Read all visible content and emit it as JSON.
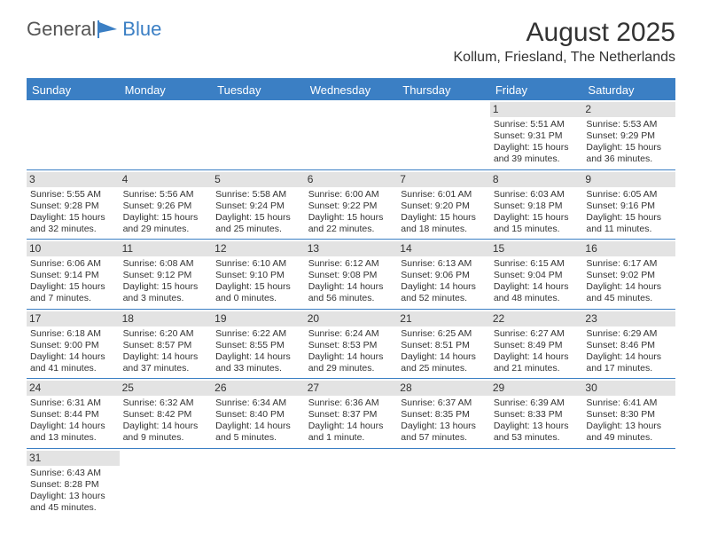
{
  "brand": {
    "part1": "General",
    "part2": "Blue"
  },
  "title": "August 2025",
  "location": "Kollum, Friesland, The Netherlands",
  "colors": {
    "accent": "#3b7fc4",
    "header_row_bg": "#e3e3e3",
    "text": "#333333",
    "bg": "#ffffff"
  },
  "dayNames": [
    "Sunday",
    "Monday",
    "Tuesday",
    "Wednesday",
    "Thursday",
    "Friday",
    "Saturday"
  ],
  "weeks": [
    [
      null,
      null,
      null,
      null,
      null,
      {
        "n": "1",
        "sr": "Sunrise: 5:51 AM",
        "ss": "Sunset: 9:31 PM",
        "d1": "Daylight: 15 hours",
        "d2": "and 39 minutes."
      },
      {
        "n": "2",
        "sr": "Sunrise: 5:53 AM",
        "ss": "Sunset: 9:29 PM",
        "d1": "Daylight: 15 hours",
        "d2": "and 36 minutes."
      }
    ],
    [
      {
        "n": "3",
        "sr": "Sunrise: 5:55 AM",
        "ss": "Sunset: 9:28 PM",
        "d1": "Daylight: 15 hours",
        "d2": "and 32 minutes."
      },
      {
        "n": "4",
        "sr": "Sunrise: 5:56 AM",
        "ss": "Sunset: 9:26 PM",
        "d1": "Daylight: 15 hours",
        "d2": "and 29 minutes."
      },
      {
        "n": "5",
        "sr": "Sunrise: 5:58 AM",
        "ss": "Sunset: 9:24 PM",
        "d1": "Daylight: 15 hours",
        "d2": "and 25 minutes."
      },
      {
        "n": "6",
        "sr": "Sunrise: 6:00 AM",
        "ss": "Sunset: 9:22 PM",
        "d1": "Daylight: 15 hours",
        "d2": "and 22 minutes."
      },
      {
        "n": "7",
        "sr": "Sunrise: 6:01 AM",
        "ss": "Sunset: 9:20 PM",
        "d1": "Daylight: 15 hours",
        "d2": "and 18 minutes."
      },
      {
        "n": "8",
        "sr": "Sunrise: 6:03 AM",
        "ss": "Sunset: 9:18 PM",
        "d1": "Daylight: 15 hours",
        "d2": "and 15 minutes."
      },
      {
        "n": "9",
        "sr": "Sunrise: 6:05 AM",
        "ss": "Sunset: 9:16 PM",
        "d1": "Daylight: 15 hours",
        "d2": "and 11 minutes."
      }
    ],
    [
      {
        "n": "10",
        "sr": "Sunrise: 6:06 AM",
        "ss": "Sunset: 9:14 PM",
        "d1": "Daylight: 15 hours",
        "d2": "and 7 minutes."
      },
      {
        "n": "11",
        "sr": "Sunrise: 6:08 AM",
        "ss": "Sunset: 9:12 PM",
        "d1": "Daylight: 15 hours",
        "d2": "and 3 minutes."
      },
      {
        "n": "12",
        "sr": "Sunrise: 6:10 AM",
        "ss": "Sunset: 9:10 PM",
        "d1": "Daylight: 15 hours",
        "d2": "and 0 minutes."
      },
      {
        "n": "13",
        "sr": "Sunrise: 6:12 AM",
        "ss": "Sunset: 9:08 PM",
        "d1": "Daylight: 14 hours",
        "d2": "and 56 minutes."
      },
      {
        "n": "14",
        "sr": "Sunrise: 6:13 AM",
        "ss": "Sunset: 9:06 PM",
        "d1": "Daylight: 14 hours",
        "d2": "and 52 minutes."
      },
      {
        "n": "15",
        "sr": "Sunrise: 6:15 AM",
        "ss": "Sunset: 9:04 PM",
        "d1": "Daylight: 14 hours",
        "d2": "and 48 minutes."
      },
      {
        "n": "16",
        "sr": "Sunrise: 6:17 AM",
        "ss": "Sunset: 9:02 PM",
        "d1": "Daylight: 14 hours",
        "d2": "and 45 minutes."
      }
    ],
    [
      {
        "n": "17",
        "sr": "Sunrise: 6:18 AM",
        "ss": "Sunset: 9:00 PM",
        "d1": "Daylight: 14 hours",
        "d2": "and 41 minutes."
      },
      {
        "n": "18",
        "sr": "Sunrise: 6:20 AM",
        "ss": "Sunset: 8:57 PM",
        "d1": "Daylight: 14 hours",
        "d2": "and 37 minutes."
      },
      {
        "n": "19",
        "sr": "Sunrise: 6:22 AM",
        "ss": "Sunset: 8:55 PM",
        "d1": "Daylight: 14 hours",
        "d2": "and 33 minutes."
      },
      {
        "n": "20",
        "sr": "Sunrise: 6:24 AM",
        "ss": "Sunset: 8:53 PM",
        "d1": "Daylight: 14 hours",
        "d2": "and 29 minutes."
      },
      {
        "n": "21",
        "sr": "Sunrise: 6:25 AM",
        "ss": "Sunset: 8:51 PM",
        "d1": "Daylight: 14 hours",
        "d2": "and 25 minutes."
      },
      {
        "n": "22",
        "sr": "Sunrise: 6:27 AM",
        "ss": "Sunset: 8:49 PM",
        "d1": "Daylight: 14 hours",
        "d2": "and 21 minutes."
      },
      {
        "n": "23",
        "sr": "Sunrise: 6:29 AM",
        "ss": "Sunset: 8:46 PM",
        "d1": "Daylight: 14 hours",
        "d2": "and 17 minutes."
      }
    ],
    [
      {
        "n": "24",
        "sr": "Sunrise: 6:31 AM",
        "ss": "Sunset: 8:44 PM",
        "d1": "Daylight: 14 hours",
        "d2": "and 13 minutes."
      },
      {
        "n": "25",
        "sr": "Sunrise: 6:32 AM",
        "ss": "Sunset: 8:42 PM",
        "d1": "Daylight: 14 hours",
        "d2": "and 9 minutes."
      },
      {
        "n": "26",
        "sr": "Sunrise: 6:34 AM",
        "ss": "Sunset: 8:40 PM",
        "d1": "Daylight: 14 hours",
        "d2": "and 5 minutes."
      },
      {
        "n": "27",
        "sr": "Sunrise: 6:36 AM",
        "ss": "Sunset: 8:37 PM",
        "d1": "Daylight: 14 hours",
        "d2": "and 1 minute."
      },
      {
        "n": "28",
        "sr": "Sunrise: 6:37 AM",
        "ss": "Sunset: 8:35 PM",
        "d1": "Daylight: 13 hours",
        "d2": "and 57 minutes."
      },
      {
        "n": "29",
        "sr": "Sunrise: 6:39 AM",
        "ss": "Sunset: 8:33 PM",
        "d1": "Daylight: 13 hours",
        "d2": "and 53 minutes."
      },
      {
        "n": "30",
        "sr": "Sunrise: 6:41 AM",
        "ss": "Sunset: 8:30 PM",
        "d1": "Daylight: 13 hours",
        "d2": "and 49 minutes."
      }
    ],
    [
      {
        "n": "31",
        "sr": "Sunrise: 6:43 AM",
        "ss": "Sunset: 8:28 PM",
        "d1": "Daylight: 13 hours",
        "d2": "and 45 minutes."
      },
      null,
      null,
      null,
      null,
      null,
      null
    ]
  ]
}
